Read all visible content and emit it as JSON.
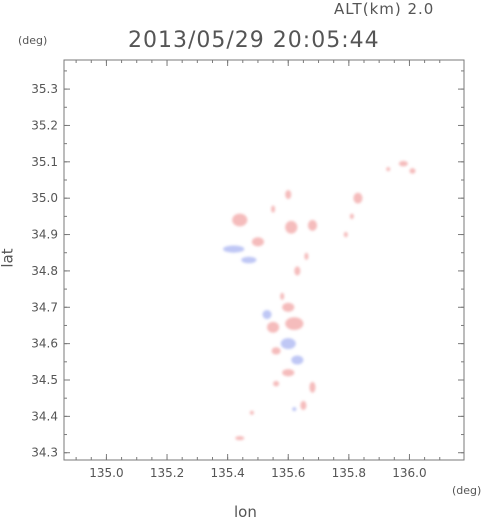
{
  "header": {
    "altitude_label": "ALT(km) 2.0",
    "timestamp": "2013/05/29 20:05:44",
    "y_unit": "(deg)",
    "x_unit": "(deg)"
  },
  "chart_data": {
    "type": "heatmap",
    "title": "2013/05/29 20:05:44",
    "subtitle": "ALT(km) 2.0",
    "xlabel": "lon",
    "ylabel": "lat",
    "xunit": "(deg)",
    "yunit": "(deg)",
    "xlim": [
      134.86,
      136.18
    ],
    "ylim": [
      34.28,
      35.38
    ],
    "x_ticks": [
      "135.0",
      "135.2",
      "135.4",
      "135.6",
      "135.8",
      "136.0"
    ],
    "x_tick_values": [
      135.0,
      135.2,
      135.4,
      135.6,
      135.8,
      136.0
    ],
    "y_ticks": [
      "34.3",
      "34.4",
      "34.5",
      "34.6",
      "34.7",
      "34.8",
      "34.9",
      "35.0",
      "35.1",
      "35.2",
      "35.3"
    ],
    "y_tick_values": [
      34.3,
      34.4,
      34.5,
      34.6,
      34.7,
      34.8,
      34.9,
      35.0,
      35.1,
      35.2,
      35.3
    ],
    "grid": false,
    "colors": {
      "positive": "#f2a6a6",
      "negative": "#a9b4f2",
      "axis": "#7a7a7a"
    },
    "echo_regions": [
      {
        "lon": 135.98,
        "lat": 35.095,
        "w": 0.03,
        "h": 0.015,
        "sign": "positive"
      },
      {
        "lon": 136.01,
        "lat": 35.075,
        "w": 0.02,
        "h": 0.015,
        "sign": "positive"
      },
      {
        "lon": 135.93,
        "lat": 35.08,
        "w": 0.01,
        "h": 0.008,
        "sign": "positive"
      },
      {
        "lon": 135.83,
        "lat": 35.0,
        "w": 0.03,
        "h": 0.03,
        "sign": "positive"
      },
      {
        "lon": 135.81,
        "lat": 34.95,
        "w": 0.01,
        "h": 0.015,
        "sign": "positive"
      },
      {
        "lon": 135.79,
        "lat": 34.9,
        "w": 0.01,
        "h": 0.015,
        "sign": "positive"
      },
      {
        "lon": 135.6,
        "lat": 35.01,
        "w": 0.02,
        "h": 0.025,
        "sign": "positive"
      },
      {
        "lon": 135.55,
        "lat": 34.97,
        "w": 0.01,
        "h": 0.02,
        "sign": "positive"
      },
      {
        "lon": 135.44,
        "lat": 34.94,
        "w": 0.05,
        "h": 0.035,
        "sign": "positive"
      },
      {
        "lon": 135.61,
        "lat": 34.92,
        "w": 0.04,
        "h": 0.035,
        "sign": "positive"
      },
      {
        "lon": 135.68,
        "lat": 34.925,
        "w": 0.03,
        "h": 0.03,
        "sign": "positive"
      },
      {
        "lon": 135.5,
        "lat": 34.88,
        "w": 0.04,
        "h": 0.025,
        "sign": "positive"
      },
      {
        "lon": 135.42,
        "lat": 34.86,
        "w": 0.07,
        "h": 0.02,
        "sign": "negative"
      },
      {
        "lon": 135.47,
        "lat": 34.83,
        "w": 0.05,
        "h": 0.018,
        "sign": "negative"
      },
      {
        "lon": 135.63,
        "lat": 34.8,
        "w": 0.02,
        "h": 0.025,
        "sign": "positive"
      },
      {
        "lon": 135.66,
        "lat": 34.84,
        "w": 0.01,
        "h": 0.02,
        "sign": "positive"
      },
      {
        "lon": 135.58,
        "lat": 34.73,
        "w": 0.01,
        "h": 0.02,
        "sign": "positive"
      },
      {
        "lon": 135.6,
        "lat": 34.7,
        "w": 0.04,
        "h": 0.025,
        "sign": "positive"
      },
      {
        "lon": 135.53,
        "lat": 34.68,
        "w": 0.03,
        "h": 0.025,
        "sign": "negative"
      },
      {
        "lon": 135.62,
        "lat": 34.655,
        "w": 0.06,
        "h": 0.035,
        "sign": "positive"
      },
      {
        "lon": 135.55,
        "lat": 34.645,
        "w": 0.04,
        "h": 0.03,
        "sign": "positive"
      },
      {
        "lon": 135.6,
        "lat": 34.6,
        "w": 0.05,
        "h": 0.03,
        "sign": "negative"
      },
      {
        "lon": 135.56,
        "lat": 34.58,
        "w": 0.03,
        "h": 0.02,
        "sign": "positive"
      },
      {
        "lon": 135.63,
        "lat": 34.555,
        "w": 0.04,
        "h": 0.025,
        "sign": "negative"
      },
      {
        "lon": 135.6,
        "lat": 34.52,
        "w": 0.04,
        "h": 0.02,
        "sign": "positive"
      },
      {
        "lon": 135.56,
        "lat": 34.49,
        "w": 0.02,
        "h": 0.015,
        "sign": "positive"
      },
      {
        "lon": 135.68,
        "lat": 34.48,
        "w": 0.02,
        "h": 0.03,
        "sign": "positive"
      },
      {
        "lon": 135.65,
        "lat": 34.43,
        "w": 0.02,
        "h": 0.025,
        "sign": "positive"
      },
      {
        "lon": 135.62,
        "lat": 34.42,
        "w": 0.01,
        "h": 0.01,
        "sign": "negative"
      },
      {
        "lon": 135.48,
        "lat": 34.41,
        "w": 0.01,
        "h": 0.01,
        "sign": "positive"
      },
      {
        "lon": 135.44,
        "lat": 34.34,
        "w": 0.03,
        "h": 0.01,
        "sign": "positive"
      }
    ]
  }
}
